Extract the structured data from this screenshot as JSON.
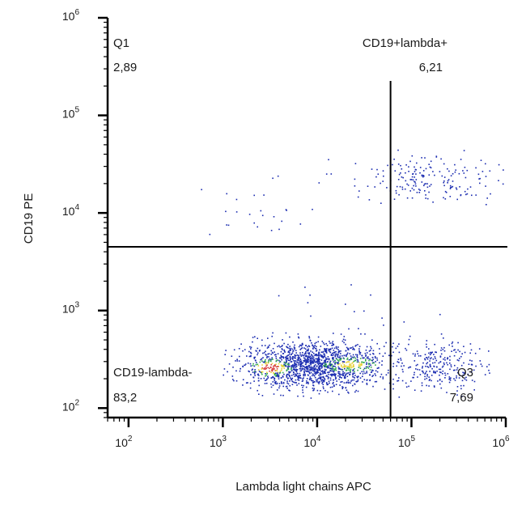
{
  "chart_data": {
    "type": "scatter",
    "title": "",
    "xlabel": "Lambda light chains  APC",
    "ylabel": "CD19 PE",
    "x_scale": "log",
    "y_scale": "log",
    "xlim": [
      60,
      1000000
    ],
    "ylim": [
      80,
      1000000
    ],
    "x_ticks": [
      {
        "value": 100,
        "base": "10",
        "exp": "2"
      },
      {
        "value": 1000,
        "base": "10",
        "exp": "3"
      },
      {
        "value": 10000,
        "base": "10",
        "exp": "4"
      },
      {
        "value": 100000,
        "base": "10",
        "exp": "5"
      },
      {
        "value": 1000000,
        "base": "10",
        "exp": "6"
      }
    ],
    "y_ticks": [
      {
        "value": 100,
        "base": "10",
        "exp": "2"
      },
      {
        "value": 1000,
        "base": "10",
        "exp": "3"
      },
      {
        "value": 10000,
        "base": "10",
        "exp": "4"
      },
      {
        "value": 100000,
        "base": "10",
        "exp": "5"
      },
      {
        "value": 1000000,
        "base": "10",
        "exp": "6"
      }
    ],
    "gates": {
      "x_threshold": 60000,
      "y_threshold": 4500
    },
    "quadrants": [
      {
        "name": "Q1",
        "value": "2,89"
      },
      {
        "name": "CD19+lambda+",
        "value": "6,21"
      },
      {
        "name": "CD19-lambda-",
        "value": "83,2"
      },
      {
        "name": "Q3",
        "value": "7,69"
      }
    ],
    "density_colors": {
      "low": "#1a2bb0",
      "mid": "#2fa84a",
      "high": "#e6d23a",
      "peak": "#d63a3a"
    },
    "grid": false,
    "legend": "none"
  }
}
